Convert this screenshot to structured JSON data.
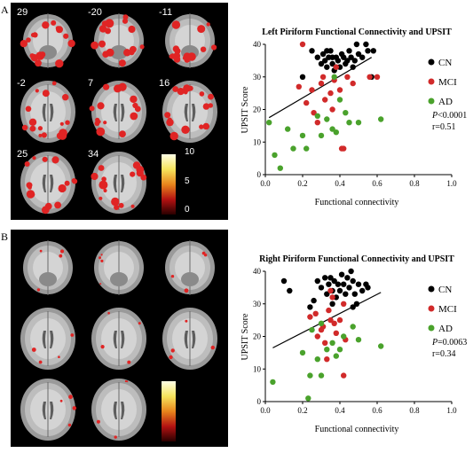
{
  "panels": [
    {
      "letter": "A",
      "slice_labels": [
        "29",
        "-20",
        "-11",
        "-2",
        "7",
        "16",
        "25",
        "34",
        ""
      ],
      "colorbar_ticks": [
        "10",
        "5",
        "0"
      ],
      "colors": {
        "cn": "#000000",
        "mci": "#d12a2a",
        "ad": "#4aa22c",
        "activation": "#e02424"
      }
    },
    {
      "letter": "B",
      "slice_labels": [
        "",
        "",
        "",
        "",
        "",
        "",
        "",
        "",
        ""
      ],
      "colorbar_ticks": [
        "",
        "",
        ""
      ],
      "colors": {
        "cn": "#000000",
        "mci": "#d12a2a",
        "ad": "#4aa22c",
        "activation": "#e02424"
      }
    }
  ],
  "chart_data": [
    {
      "type": "scatter",
      "title": "Left Piriform Functional Connectivity and UPSIT",
      "xlabel": "Functional connectivity",
      "ylabel": "UPSIT Score",
      "xlim": [
        0,
        1.0
      ],
      "ylim": [
        0,
        40
      ],
      "xticks": [
        "0.0",
        "0.2",
        "0.4",
        "0.6",
        "0.8",
        "1.0"
      ],
      "yticks": [
        "0",
        "10",
        "20",
        "30",
        "40"
      ],
      "legend": [
        "CN",
        "MCI",
        "AD"
      ],
      "legend_position": "right",
      "stats": [
        "P<0.0001",
        "r=0.51"
      ],
      "trend_line": {
        "x": [
          0.02,
          0.57
        ],
        "y": [
          17.5,
          36.0
        ]
      },
      "series": [
        {
          "name": "CN",
          "color": "#000000",
          "points": [
            [
              0.2,
              30
            ],
            [
              0.25,
              38
            ],
            [
              0.28,
              36
            ],
            [
              0.3,
              34
            ],
            [
              0.31,
              37
            ],
            [
              0.32,
              35
            ],
            [
              0.33,
              33
            ],
            [
              0.34,
              36
            ],
            [
              0.35,
              38
            ],
            [
              0.36,
              34
            ],
            [
              0.37,
              32
            ],
            [
              0.38,
              36
            ],
            [
              0.39,
              35
            ],
            [
              0.4,
              33
            ],
            [
              0.41,
              37
            ],
            [
              0.42,
              36
            ],
            [
              0.43,
              34
            ],
            [
              0.44,
              35
            ],
            [
              0.45,
              38
            ],
            [
              0.46,
              36
            ],
            [
              0.47,
              33
            ],
            [
              0.48,
              35
            ],
            [
              0.49,
              40
            ],
            [
              0.5,
              37
            ],
            [
              0.52,
              36
            ],
            [
              0.54,
              40
            ],
            [
              0.55,
              38
            ],
            [
              0.57,
              30
            ],
            [
              0.58,
              38
            ],
            [
              0.38,
              33
            ],
            [
              0.36,
              36
            ],
            [
              0.33,
              38
            ]
          ]
        },
        {
          "name": "MCI",
          "color": "#d12a2a",
          "points": [
            [
              0.2,
              40
            ],
            [
              0.18,
              27
            ],
            [
              0.22,
              22
            ],
            [
              0.25,
              26
            ],
            [
              0.26,
              19
            ],
            [
              0.28,
              16
            ],
            [
              0.3,
              28
            ],
            [
              0.31,
              30
            ],
            [
              0.32,
              23
            ],
            [
              0.35,
              25
            ],
            [
              0.36,
              20
            ],
            [
              0.37,
              29
            ],
            [
              0.38,
              33
            ],
            [
              0.4,
              26
            ],
            [
              0.41,
              8
            ],
            [
              0.44,
              30
            ],
            [
              0.47,
              28
            ],
            [
              0.56,
              30
            ],
            [
              0.6,
              30
            ],
            [
              0.42,
              8
            ]
          ]
        },
        {
          "name": "AD",
          "color": "#4aa22c",
          "points": [
            [
              0.02,
              16
            ],
            [
              0.05,
              6
            ],
            [
              0.08,
              2
            ],
            [
              0.12,
              14
            ],
            [
              0.15,
              8
            ],
            [
              0.2,
              12
            ],
            [
              0.22,
              8
            ],
            [
              0.28,
              18
            ],
            [
              0.3,
              12
            ],
            [
              0.33,
              17
            ],
            [
              0.36,
              14
            ],
            [
              0.37,
              30
            ],
            [
              0.38,
              13
            ],
            [
              0.4,
              23
            ],
            [
              0.43,
              19
            ],
            [
              0.45,
              16
            ],
            [
              0.5,
              16
            ],
            [
              0.62,
              17
            ]
          ]
        }
      ]
    },
    {
      "type": "scatter",
      "title": "Right Piriform Functional Connectivity and UPSIT",
      "xlabel": "Functional connectivity",
      "ylabel": "UPSIT Score",
      "xlim": [
        0,
        1.0
      ],
      "ylim": [
        0,
        40
      ],
      "xticks": [
        "0.0",
        "0.2",
        "0.4",
        "0.6",
        "0.8",
        "1.0"
      ],
      "yticks": [
        "0",
        "10",
        "20",
        "30",
        "40"
      ],
      "legend": [
        "CN",
        "MCI",
        "AD"
      ],
      "legend_position": "right",
      "stats": [
        "P=0.0063",
        "r=0.34"
      ],
      "trend_line": {
        "x": [
          0.04,
          0.62
        ],
        "y": [
          16.5,
          33.5
        ]
      },
      "series": [
        {
          "name": "CN",
          "color": "#000000",
          "points": [
            [
              0.1,
              37
            ],
            [
              0.13,
              34
            ],
            [
              0.24,
              29
            ],
            [
              0.26,
              31
            ],
            [
              0.28,
              37
            ],
            [
              0.3,
              35
            ],
            [
              0.32,
              38
            ],
            [
              0.33,
              33
            ],
            [
              0.34,
              36
            ],
            [
              0.35,
              38
            ],
            [
              0.36,
              34
            ],
            [
              0.37,
              37
            ],
            [
              0.38,
              32
            ],
            [
              0.39,
              36
            ],
            [
              0.4,
              34
            ],
            [
              0.41,
              39
            ],
            [
              0.42,
              36
            ],
            [
              0.43,
              33
            ],
            [
              0.44,
              38
            ],
            [
              0.45,
              35
            ],
            [
              0.46,
              40
            ],
            [
              0.47,
              37
            ],
            [
              0.48,
              33
            ],
            [
              0.49,
              30
            ],
            [
              0.5,
              36
            ],
            [
              0.52,
              34
            ],
            [
              0.54,
              36
            ],
            [
              0.55,
              35
            ],
            [
              0.47,
              29
            ],
            [
              0.36,
              30
            ]
          ]
        },
        {
          "name": "MCI",
          "color": "#d12a2a",
          "points": [
            [
              0.24,
              26
            ],
            [
              0.27,
              27
            ],
            [
              0.28,
              20
            ],
            [
              0.3,
              22
            ],
            [
              0.31,
              23
            ],
            [
              0.32,
              18
            ],
            [
              0.33,
              13
            ],
            [
              0.34,
              28
            ],
            [
              0.35,
              34
            ],
            [
              0.36,
              32
            ],
            [
              0.37,
              24
            ],
            [
              0.38,
              21
            ],
            [
              0.4,
              25
            ],
            [
              0.42,
              30
            ],
            [
              0.43,
              19
            ],
            [
              0.35,
              25
            ],
            [
              0.42,
              8
            ]
          ]
        },
        {
          "name": "AD",
          "color": "#4aa22c",
          "points": [
            [
              0.04,
              6
            ],
            [
              0.2,
              15
            ],
            [
              0.23,
              1
            ],
            [
              0.24,
              8
            ],
            [
              0.25,
              22
            ],
            [
              0.28,
              13
            ],
            [
              0.3,
              8
            ],
            [
              0.33,
              16
            ],
            [
              0.36,
              18
            ],
            [
              0.38,
              14
            ],
            [
              0.4,
              16
            ],
            [
              0.42,
              20
            ],
            [
              0.47,
              23
            ],
            [
              0.5,
              19
            ],
            [
              0.62,
              17
            ],
            [
              0.3,
              24
            ]
          ]
        }
      ]
    }
  ]
}
